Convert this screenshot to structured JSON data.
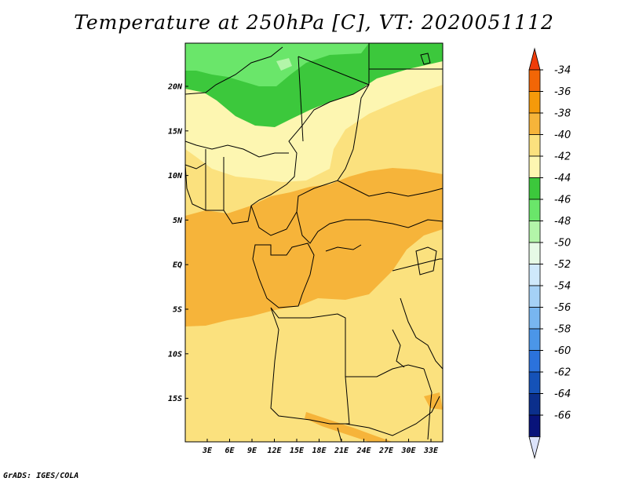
{
  "title": "Temperature at 250hPa [C], VT: 2020051112",
  "footer": "GrADS: IGES/COLA",
  "map": {
    "lat_ticks": [
      "20N",
      "15N",
      "10N",
      "5N",
      "EQ",
      "5S",
      "10S",
      "15S"
    ],
    "lon_ticks": [
      "3E",
      "6E",
      "9E",
      "12E",
      "15E",
      "18E",
      "21E",
      "24E",
      "27E",
      "30E",
      "33E"
    ]
  },
  "colorbar": {
    "labels": [
      "-34",
      "-36",
      "-38",
      "-40",
      "-42",
      "-44",
      "-46",
      "-48",
      "-50",
      "-52",
      "-54",
      "-56",
      "-58",
      "-60",
      "-62",
      "-64",
      "-66"
    ],
    "colors": [
      "#f03c0a",
      "#f26606",
      "#f59a0a",
      "#f6b43a",
      "#fbe17e",
      "#fdf6b1",
      "#3cc83c",
      "#6ae66a",
      "#b3f5a9",
      "#e6fae6",
      "#cfe9fb",
      "#a5d1f6",
      "#78b6f0",
      "#4b96e8",
      "#2b72dc",
      "#1552b8",
      "#0b2f8c",
      "#08137a",
      "#dce3fa"
    ]
  }
}
